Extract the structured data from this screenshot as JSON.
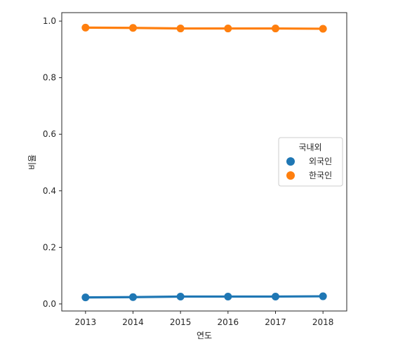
{
  "chart_data": {
    "type": "line",
    "title": "",
    "xlabel": "연도",
    "ylabel": "비율",
    "categories": [
      "2013",
      "2014",
      "2015",
      "2016",
      "2017",
      "2018"
    ],
    "ylim": [
      -0.025,
      1.03
    ],
    "yticks": [
      "0.0",
      "0.2",
      "0.4",
      "0.6",
      "0.8",
      "1.0"
    ],
    "grid": false,
    "legend": {
      "title": "국내외",
      "placement": "center-right"
    },
    "series": [
      {
        "name": "외국인",
        "color": "#1f77b4",
        "values": [
          0.023,
          0.024,
          0.026,
          0.026,
          0.026,
          0.027
        ]
      },
      {
        "name": "한국인",
        "color": "#ff7f0e",
        "values": [
          0.977,
          0.976,
          0.974,
          0.974,
          0.974,
          0.973
        ]
      }
    ]
  }
}
